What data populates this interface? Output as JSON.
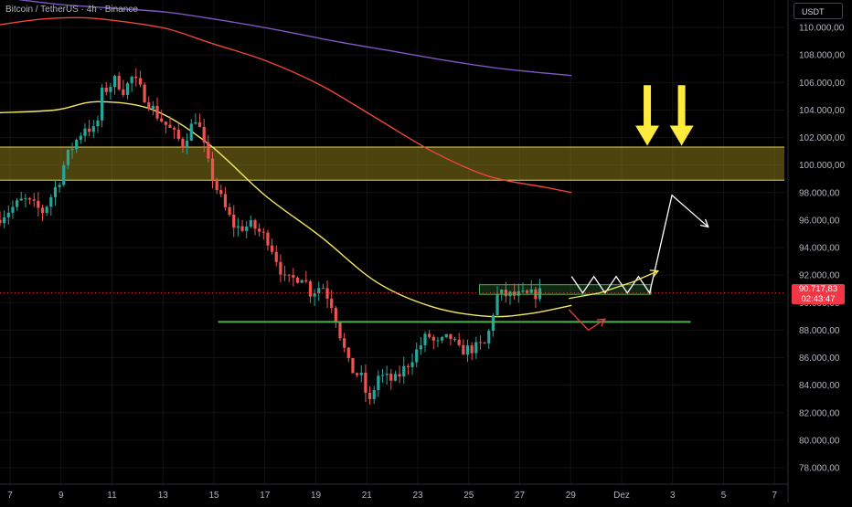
{
  "header": {
    "title": "Bitcoin / TetherUS · 4h · Binance"
  },
  "currency_button": {
    "label": "USDT"
  },
  "last_price": {
    "value": "90.717,83",
    "countdown": "02:43:47"
  },
  "colors": {
    "background": "#000000",
    "bull": "#26a69a",
    "bear": "#ef5350",
    "ma_fast": "#f5e960",
    "ma_mid": "#f0453a",
    "ma_slow": "#7e57c2",
    "zone_fill": "#8b7a1c",
    "zone_border": "#e8d44a",
    "support": "#4caf50",
    "box": "#4caf50",
    "big_arrow": "#ffeb3b",
    "path_white": "#ffffff",
    "path_yellow": "#f5e960",
    "path_red": "#f23645"
  },
  "chart_data": {
    "type": "candlestick",
    "title": "Bitcoin / TetherUS · 4h · Binance",
    "y_axis": {
      "ticks": [
        "110.000,00",
        "108.000,00",
        "106.000,00",
        "104.000,00",
        "102.000,00",
        "100.000,00",
        "98.000,00",
        "96.000,00",
        "94.000,00",
        "92.000,00",
        "90.000,00",
        "88.000,00",
        "86.000,00",
        "84.000,00",
        "82.000,00",
        "80.000,00",
        "78.000,00"
      ],
      "range": [
        76000,
        112800
      ]
    },
    "x_axis": {
      "ticks": [
        "7",
        "9",
        "11",
        "13",
        "15",
        "17",
        "19",
        "21",
        "23",
        "25",
        "27",
        "29",
        "Dez",
        "3",
        "5",
        "7"
      ]
    },
    "ohlc_path": [
      [
        0.0,
        96000
      ],
      [
        1.0,
        97500
      ],
      [
        1.7,
        96600
      ],
      [
        2.3,
        99000
      ],
      [
        2.5,
        100400
      ],
      [
        2.8,
        101500
      ],
      [
        3.2,
        102800
      ],
      [
        3.6,
        102400
      ],
      [
        3.8,
        105200
      ],
      [
        4.3,
        106200
      ],
      [
        4.6,
        105400
      ],
      [
        4.9,
        106400
      ],
      [
        5.3,
        105100
      ],
      [
        5.8,
        103600
      ],
      [
        6.2,
        102700
      ],
      [
        6.7,
        101500
      ],
      [
        7.2,
        103600
      ],
      [
        7.6,
        100200
      ],
      [
        7.9,
        98400
      ],
      [
        8.3,
        96500
      ],
      [
        8.6,
        95400
      ],
      [
        9.2,
        95600
      ],
      [
        9.8,
        94500
      ],
      [
        10.4,
        91500
      ],
      [
        11.0,
        92000
      ],
      [
        11.3,
        90700
      ],
      [
        11.7,
        91300
      ],
      [
        12.1,
        89700
      ],
      [
        12.4,
        87300
      ],
      [
        12.7,
        85200
      ],
      [
        13.1,
        84600
      ],
      [
        13.4,
        82600
      ],
      [
        13.7,
        84700
      ],
      [
        14.3,
        84300
      ],
      [
        14.8,
        85600
      ],
      [
        15.2,
        86800
      ],
      [
        15.5,
        87700
      ],
      [
        15.8,
        86900
      ],
      [
        16.3,
        87500
      ],
      [
        16.6,
        86500
      ],
      [
        17.2,
        86700
      ],
      [
        17.6,
        87000
      ],
      [
        17.8,
        89000
      ],
      [
        18.0,
        90600
      ],
      [
        18.6,
        90500
      ],
      [
        19.1,
        90500
      ],
      [
        19.5,
        90717
      ]
    ],
    "volatility": 1000,
    "moving_averages": [
      {
        "points": [
          [
            0.0,
            103800
          ],
          [
            2.0,
            104000
          ],
          [
            3.5,
            104600
          ],
          [
            5.5,
            104000
          ],
          [
            7.5,
            101500
          ],
          [
            9.5,
            97800
          ],
          [
            11.5,
            94800
          ],
          [
            13.5,
            91500
          ],
          [
            15.5,
            89700
          ],
          [
            17.5,
            89000
          ],
          [
            19.0,
            89200
          ],
          [
            20.5,
            89800
          ]
        ]
      },
      {
        "points": [
          [
            0.0,
            110200
          ],
          [
            1.5,
            110600
          ],
          [
            3.0,
            110700
          ],
          [
            4.5,
            110400
          ],
          [
            6.0,
            109900
          ],
          [
            7.5,
            108900
          ],
          [
            9.5,
            107600
          ],
          [
            11.5,
            105800
          ],
          [
            13.5,
            103400
          ],
          [
            15.5,
            101000
          ],
          [
            17.5,
            99200
          ],
          [
            19.5,
            98400
          ],
          [
            20.5,
            98000
          ]
        ]
      },
      {
        "points": [
          [
            0.0,
            112200
          ],
          [
            2.0,
            111700
          ],
          [
            4.0,
            111400
          ],
          [
            6.0,
            111100
          ],
          [
            8.0,
            110500
          ],
          [
            10.0,
            109800
          ],
          [
            12.0,
            109000
          ],
          [
            14.0,
            108300
          ],
          [
            16.0,
            107600
          ],
          [
            18.0,
            107000
          ],
          [
            20.5,
            106500
          ]
        ]
      }
    ],
    "resistance_zone": [
      98900,
      101300
    ],
    "support_level": {
      "value": 88600,
      "from": 11.2,
      "to": 25.7
    },
    "consolidation_box": {
      "y": [
        90600,
        91300
      ],
      "x": [
        17.9,
        24.3
      ]
    },
    "last_price": 90717.83,
    "projection_paths": [
      {
        "color": "white",
        "arrow": true,
        "points": [
          [
            20.5,
            91900
          ],
          [
            20.9,
            90700
          ],
          [
            21.3,
            91900
          ],
          [
            21.7,
            90700
          ],
          [
            22.1,
            91900
          ],
          [
            22.5,
            90700
          ],
          [
            22.9,
            91900
          ],
          [
            23.3,
            90700
          ],
          [
            24.1,
            97800
          ],
          [
            25.4,
            95500
          ]
        ]
      },
      {
        "color": "yellow",
        "arrow": true,
        "points": [
          [
            20.4,
            90300
          ],
          [
            21.5,
            90700
          ],
          [
            22.7,
            91500
          ],
          [
            23.6,
            92300
          ]
        ]
      },
      {
        "color": "red",
        "arrow": true,
        "points": [
          [
            20.4,
            89500
          ],
          [
            21.1,
            88000
          ],
          [
            21.7,
            88800
          ]
        ]
      }
    ],
    "annotation_arrows": [
      {
        "x": 24.5,
        "tip": 101400,
        "tail": 105800
      },
      {
        "x": 25.8,
        "tip": 101400,
        "tail": 105800
      }
    ]
  }
}
